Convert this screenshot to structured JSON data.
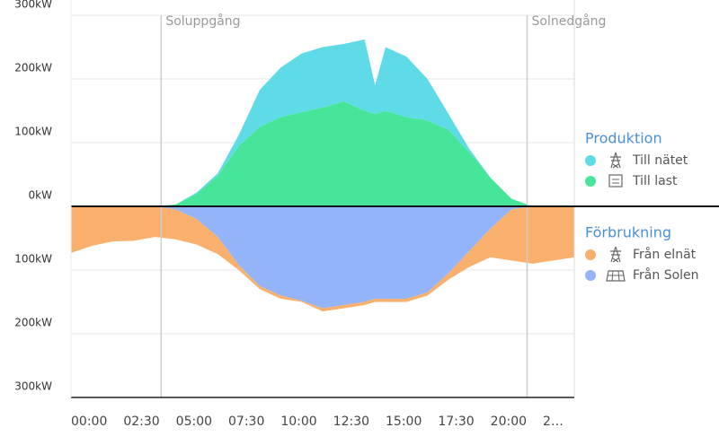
{
  "chart_data": {
    "type": "stacked_area",
    "x": [
      0,
      1,
      2,
      3,
      4,
      5,
      6,
      7,
      8,
      9,
      10,
      11,
      12,
      13,
      14,
      14.5,
      15,
      16,
      17,
      18,
      19,
      20,
      21,
      22,
      23,
      24
    ],
    "series": [
      {
        "name": "Till last",
        "group": "Produktion",
        "color": "#46e59a",
        "values": [
          0,
          0,
          0,
          0,
          0,
          3,
          20,
          48,
          95,
          125,
          140,
          148,
          155,
          165,
          150,
          145,
          150,
          140,
          135,
          120,
          85,
          45,
          12,
          0,
          0,
          0
        ]
      },
      {
        "name": "Till nätet",
        "group": "Produktion",
        "color": "#5fdbe8",
        "values": [
          0,
          0,
          0,
          0,
          0,
          0,
          2,
          4,
          17,
          58,
          78,
          92,
          95,
          90,
          112,
          45,
          100,
          95,
          65,
          25,
          5,
          0,
          0,
          0,
          0,
          0
        ]
      },
      {
        "name": "Från Solen",
        "group": "Förbrukning",
        "color": "#93b4f9",
        "values": [
          0,
          0,
          0,
          0,
          0,
          -5,
          -20,
          -48,
          -92,
          -125,
          -140,
          -148,
          -160,
          -155,
          -150,
          -145,
          -145,
          -145,
          -135,
          -105,
          -70,
          -35,
          -5,
          0,
          0,
          0
        ]
      },
      {
        "name": "Från elnät",
        "group": "Förbrukning",
        "color": "#f9b06d",
        "values": [
          -73,
          -62,
          -55,
          -54,
          -48,
          -47,
          -40,
          -27,
          -8,
          -5,
          -5,
          -2,
          -5,
          -5,
          -5,
          -5,
          -5,
          -5,
          -5,
          -10,
          -25,
          -45,
          -80,
          -90,
          -85,
          -80
        ]
      }
    ],
    "xlim": [
      0,
      24
    ],
    "xticks": [
      {
        "value": 0,
        "label": "00:00"
      },
      {
        "value": 2.5,
        "label": "02:30"
      },
      {
        "value": 5,
        "label": "05:00"
      },
      {
        "value": 7.5,
        "label": "07:30"
      },
      {
        "value": 10,
        "label": "10:00"
      },
      {
        "value": 12.5,
        "label": "12:30"
      },
      {
        "value": 15,
        "label": "15:00"
      },
      {
        "value": 17.5,
        "label": "17:30"
      },
      {
        "value": 20,
        "label": "20:00"
      },
      {
        "value": 22.5,
        "label": "2…"
      }
    ],
    "ylim": [
      -300,
      300
    ],
    "yticks": [
      {
        "value": 300,
        "label": "300kW"
      },
      {
        "value": 200,
        "label": "200kW"
      },
      {
        "value": 100,
        "label": "100kW"
      },
      {
        "value": 0,
        "label": "0kW"
      },
      {
        "value": -100,
        "label": "100kW"
      },
      {
        "value": -200,
        "label": "200kW"
      },
      {
        "value": -300,
        "label": "300kW"
      }
    ],
    "annotations": [
      {
        "text": "Soluppgång",
        "x": 4.3
      },
      {
        "text": "Solnedgång",
        "x": 21.75
      }
    ],
    "grid": true
  }
}
